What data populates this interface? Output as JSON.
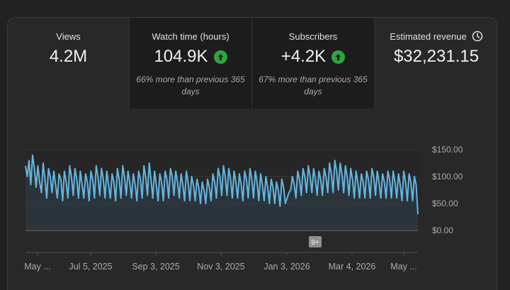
{
  "metrics": [
    {
      "label": "Views",
      "value": "4.2M",
      "trend": "",
      "note": ""
    },
    {
      "label": "Watch time (hours)",
      "value": "104.9K",
      "trend": "up",
      "note": "66% more than previous 365 days"
    },
    {
      "label": "Subscribers",
      "value": "+4.2K",
      "trend": "up",
      "note": "67% more than previous 365 days"
    },
    {
      "label": "Estimated revenue",
      "value": "$32,231.15",
      "trend": "",
      "note": "",
      "icon": "clock-icon"
    }
  ],
  "colors": {
    "accent_line": "#65b5e0",
    "trend_up": "#2ba640",
    "card": "#282828",
    "tile_dark": "#1c1c1c"
  },
  "chart_data": {
    "type": "line",
    "y_ticks": [
      "$150.00",
      "$100.00",
      "$50.00",
      "$0.00"
    ],
    "ylim": [
      0,
      150
    ],
    "x_ticks": [
      "May ...",
      "Jul 5, 2025",
      "Sep 3, 2025",
      "Nov 3, 2025",
      "Jan 3, 2026",
      "Mar 4, 2026",
      "May ..."
    ],
    "annotation": "9+",
    "grid": true,
    "values": [
      120,
      100,
      130,
      85,
      140,
      115,
      80,
      120,
      90,
      70,
      125,
      95,
      60,
      115,
      100,
      70,
      110,
      85,
      60,
      105,
      95,
      55,
      110,
      90,
      60,
      120,
      100,
      65,
      115,
      95,
      60,
      110,
      85,
      60,
      105,
      90,
      55,
      110,
      95,
      60,
      120,
      100,
      65,
      115,
      95,
      60,
      110,
      85,
      60,
      105,
      90,
      55,
      115,
      95,
      60,
      120,
      100,
      65,
      110,
      90,
      60,
      105,
      85,
      55,
      110,
      95,
      60,
      120,
      100,
      65,
      125,
      95,
      60,
      110,
      85,
      55,
      105,
      90,
      55,
      110,
      95,
      60,
      115,
      100,
      65,
      110,
      90,
      60,
      105,
      85,
      55,
      110,
      90,
      55,
      100,
      85,
      55,
      95,
      80,
      50,
      90,
      75,
      50,
      95,
      80,
      55,
      105,
      90,
      60,
      115,
      100,
      65,
      120,
      100,
      65,
      115,
      95,
      60,
      110,
      90,
      60,
      105,
      85,
      55,
      110,
      95,
      60,
      115,
      95,
      60,
      110,
      90,
      55,
      105,
      85,
      55,
      100,
      80,
      50,
      95,
      80,
      50,
      90,
      75,
      45,
      95,
      80,
      50,
      60,
      70,
      75,
      100,
      85,
      60,
      110,
      95,
      65,
      115,
      100,
      70,
      120,
      100,
      70,
      115,
      95,
      65,
      110,
      95,
      65,
      115,
      100,
      70,
      125,
      105,
      70,
      130,
      110,
      75,
      125,
      105,
      70,
      120,
      100,
      65,
      115,
      95,
      60,
      110,
      90,
      60,
      105,
      90,
      60,
      110,
      95,
      60,
      115,
      100,
      65,
      110,
      90,
      60,
      105,
      90,
      60,
      110,
      95,
      60,
      110,
      90,
      60,
      105,
      85,
      55,
      110,
      90,
      55,
      105,
      90,
      55,
      100,
      85,
      30
    ]
  }
}
